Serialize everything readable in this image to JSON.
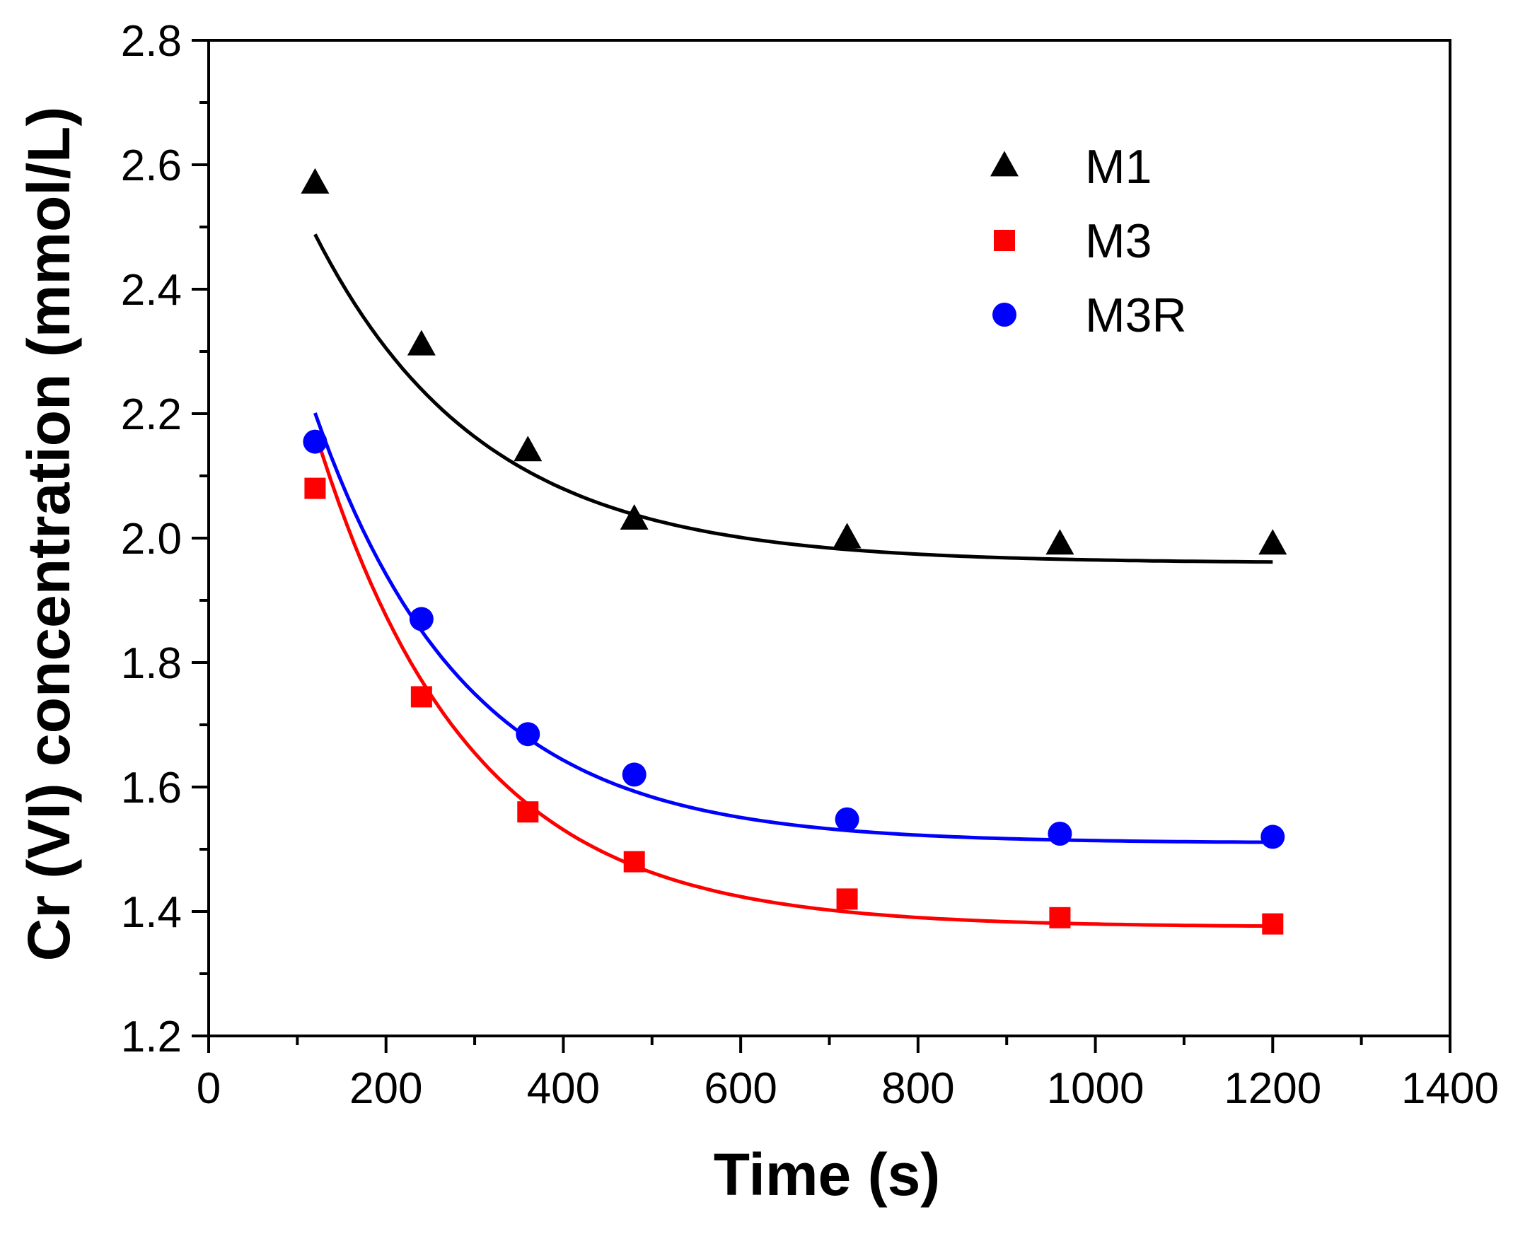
{
  "chart_data": {
    "type": "scatter",
    "title": "",
    "xlabel": "Time (s)",
    "ylabel": "Cr (VI) concentration (mmol/L)",
    "xlim": [
      0,
      1400
    ],
    "ylim": [
      1.2,
      2.8
    ],
    "xticks": [
      0,
      200,
      400,
      600,
      800,
      1000,
      1200,
      1400
    ],
    "yticks": [
      1.2,
      1.4,
      1.6,
      1.8,
      2.0,
      2.2,
      2.4,
      2.6,
      2.8
    ],
    "xtick_labels": [
      "0",
      "200",
      "400",
      "600",
      "800",
      "1000",
      "1200",
      "1400"
    ],
    "ytick_labels": [
      "1.2",
      "1.4",
      "1.6",
      "1.8",
      "2.0",
      "2.2",
      "2.4",
      "2.6",
      "2.8"
    ],
    "grid": false,
    "legend_position": "top-right",
    "series": [
      {
        "name": "M1",
        "marker": "triangle",
        "color": "#000000",
        "x": [
          120,
          240,
          360,
          480,
          720,
          960,
          1200
        ],
        "y": [
          2.57,
          2.31,
          2.14,
          2.03,
          2.0,
          1.99,
          1.99
        ],
        "fit": {
          "model": "exponential_decay",
          "a": 1.96,
          "b": 1.0,
          "tau": 188,
          "x_range": [
            120,
            1200
          ]
        }
      },
      {
        "name": "M3",
        "marker": "square",
        "color": "#ff0000",
        "x": [
          120,
          240,
          360,
          480,
          720,
          960,
          1200
        ],
        "y": [
          2.08,
          1.745,
          1.56,
          1.48,
          1.42,
          1.39,
          1.38
        ],
        "fit": {
          "model": "exponential_decay",
          "a": 1.375,
          "b": 1.6,
          "tau": 172,
          "x_range": [
            120,
            1200
          ]
        }
      },
      {
        "name": "M3R",
        "marker": "circle",
        "color": "#0000ff",
        "x": [
          120,
          240,
          360,
          480,
          720,
          960,
          1200
        ],
        "y": [
          2.155,
          1.87,
          1.685,
          1.62,
          1.548,
          1.525,
          1.52
        ],
        "fit": {
          "model": "exponential_decay",
          "a": 1.51,
          "b": 1.4,
          "tau": 170,
          "x_range": [
            120,
            1200
          ]
        }
      }
    ]
  }
}
